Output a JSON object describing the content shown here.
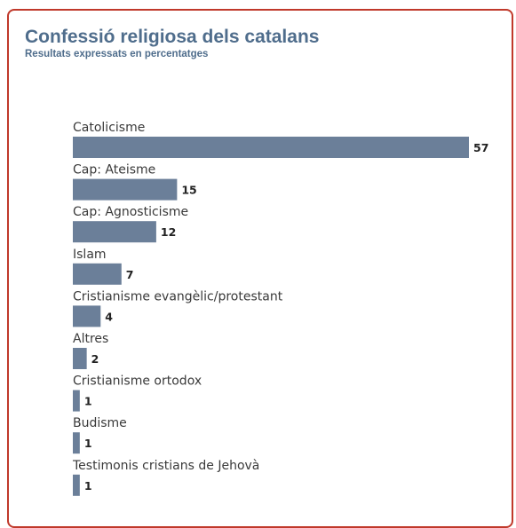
{
  "header": {
    "title": "Confessió religiosa dels catalans",
    "subtitle": "Resultats expressats en percentatges"
  },
  "colors": {
    "bar": "#6b7f99",
    "title": "#4f6d8c",
    "frame_border": "#c0392b"
  },
  "chart_data": {
    "type": "bar",
    "orientation": "horizontal",
    "title": "Confessió religiosa dels catalans",
    "subtitle": "Resultats expressats en percentatges",
    "categories": [
      "Catolicisme",
      "Cap: Ateisme",
      "Cap: Agnosticisme",
      "Islam",
      "Cristianisme evangèlic/protestant",
      "Altres",
      "Cristianisme ortodox",
      "Budisme",
      "Testimonis cristians de Jehovà"
    ],
    "values": [
      57,
      15,
      12,
      7,
      4,
      2,
      1,
      1,
      1
    ],
    "xlim": [
      0,
      57
    ],
    "grid": false,
    "legend": "none",
    "data_labels": true
  }
}
